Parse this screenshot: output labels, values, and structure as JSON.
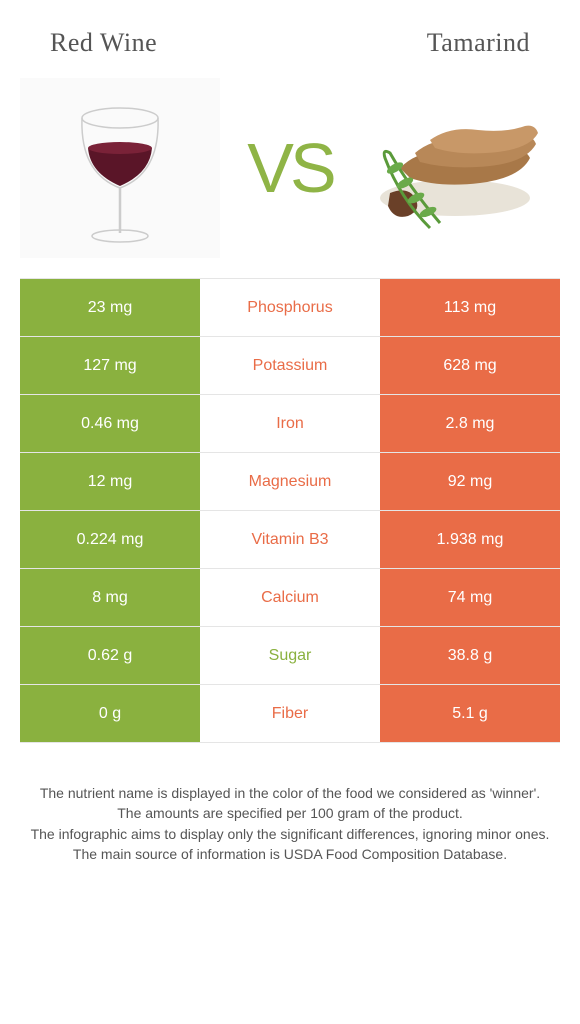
{
  "titles": {
    "left": "Red Wine",
    "right": "Tamarind"
  },
  "vs_text": "VS",
  "colors": {
    "left_bg": "#8ab13f",
    "right_bg": "#e96c47",
    "mid_winner_left": "#8ab13f",
    "mid_winner_right": "#e96c47",
    "border": "#e5e5e5"
  },
  "rows": [
    {
      "nutrient": "Phosphorus",
      "left": "23 mg",
      "right": "113 mg",
      "winner": "right"
    },
    {
      "nutrient": "Potassium",
      "left": "127 mg",
      "right": "628 mg",
      "winner": "right"
    },
    {
      "nutrient": "Iron",
      "left": "0.46 mg",
      "right": "2.8 mg",
      "winner": "right"
    },
    {
      "nutrient": "Magnesium",
      "left": "12 mg",
      "right": "92 mg",
      "winner": "right"
    },
    {
      "nutrient": "Vitamin B3",
      "left": "0.224 mg",
      "right": "1.938 mg",
      "winner": "right"
    },
    {
      "nutrient": "Calcium",
      "left": "8 mg",
      "right": "74 mg",
      "winner": "right"
    },
    {
      "nutrient": "Sugar",
      "left": "0.62 g",
      "right": "38.8 g",
      "winner": "left"
    },
    {
      "nutrient": "Fiber",
      "left": "0 g",
      "right": "5.1 g",
      "winner": "right"
    }
  ],
  "footer": {
    "l1": "The nutrient name is displayed in the color of the food we considered as 'winner'.",
    "l2": "The amounts are specified per 100 gram of the product.",
    "l3": "The infographic aims to display only the significant differences, ignoring minor ones.",
    "l4": "The main source of information is USDA Food Composition Database."
  }
}
